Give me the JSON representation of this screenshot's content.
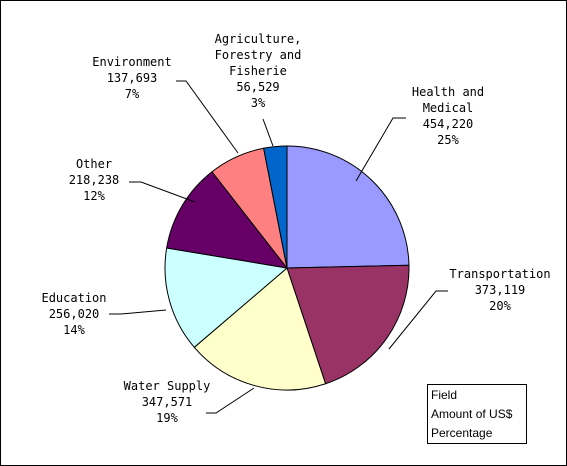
{
  "chart_data": {
    "type": "pie",
    "title": "",
    "legend": {
      "placement": "bottom-right",
      "lines": [
        "Field",
        "Amount of US$",
        "Percentage"
      ]
    },
    "slices": [
      {
        "label": [
          "Health and",
          "Medical"
        ],
        "value": 454220,
        "value_text": "454,220",
        "percent": "25%",
        "color": "#9999ff"
      },
      {
        "label": [
          "Transportation"
        ],
        "value": 373119,
        "value_text": "373,119",
        "percent": "20%",
        "color": "#993366"
      },
      {
        "label": [
          "Water Supply"
        ],
        "value": 347571,
        "value_text": "347,571",
        "percent": "19%",
        "color": "#ffffcc"
      },
      {
        "label": [
          "Education"
        ],
        "value": 256020,
        "value_text": "256,020",
        "percent": "14%",
        "color": "#ccffff"
      },
      {
        "label": [
          "Other"
        ],
        "value": 218238,
        "value_text": "218,238",
        "percent": "12%",
        "color": "#660066"
      },
      {
        "label": [
          "Environment"
        ],
        "value": 137693,
        "value_text": "137,693",
        "percent": "7%",
        "color": "#ff8080"
      },
      {
        "label": [
          "Agriculture,",
          "Forestry and",
          "Fisherie"
        ],
        "value": 56529,
        "value_text": "56,529",
        "percent": "3%",
        "color": "#0066cc"
      }
    ]
  }
}
